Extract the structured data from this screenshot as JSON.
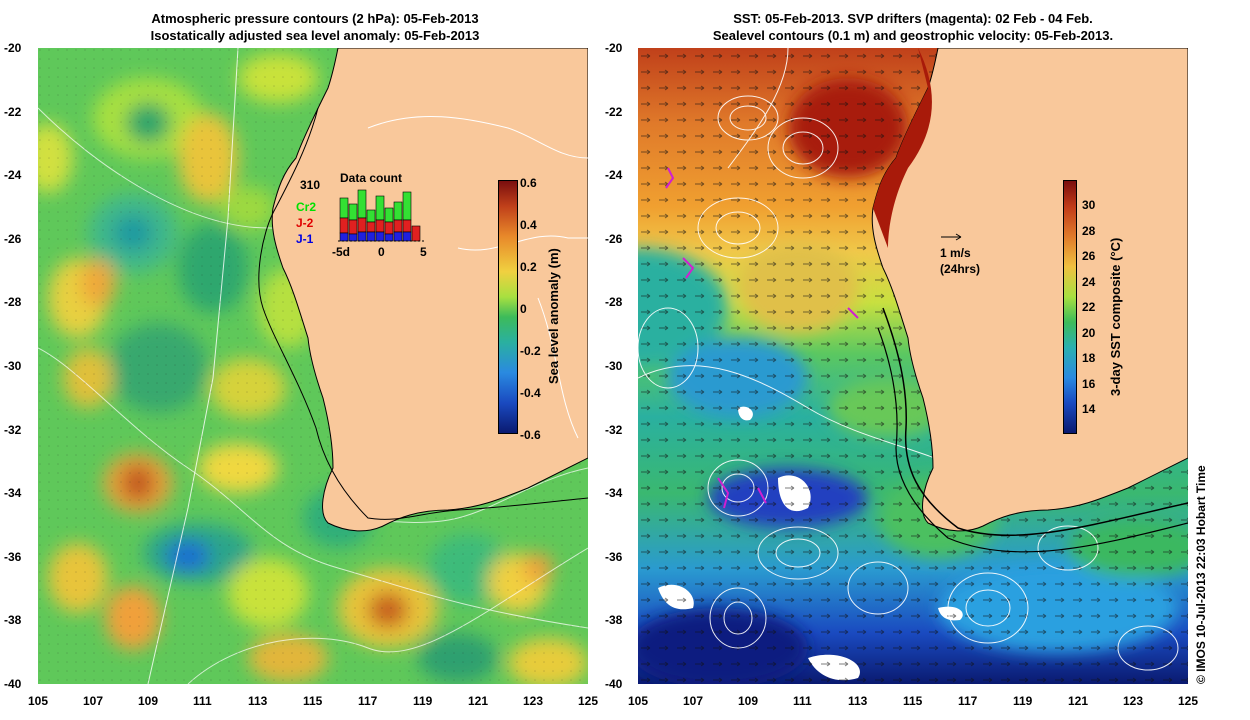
{
  "left_panel": {
    "title_line1": "Atmospheric pressure contours (2 hPa): 05-Feb-2013",
    "title_line2": "Isostatically adjusted sea level anomaly: 05-Feb-2013",
    "colorbar_label": "Sea level anomaly (m)",
    "colorbar_ticks": [
      "0.6",
      "0.4",
      "0.2",
      "0",
      "-0.2",
      "-0.4",
      "-0.6"
    ],
    "inset": {
      "title": "Data count",
      "max_label": "310",
      "legend": [
        "Cr2",
        "J-2",
        "J-1"
      ],
      "x_ticks": [
        "-5d",
        "0",
        "5"
      ]
    }
  },
  "right_panel": {
    "title_line1": "SST: 05-Feb-2013. SVP drifters (magenta): 02 Feb - 04 Feb.",
    "title_line2": "Sealevel contours (0.1 m) and geostrophic velocity: 05-Feb-2013.",
    "colorbar_label": "3-day SST composite (°C)",
    "colorbar_ticks": [
      "30",
      "28",
      "26",
      "24",
      "22",
      "20",
      "18",
      "16",
      "14"
    ],
    "velocity_scale_label": "1 m/s",
    "velocity_scale_sub": "(24hrs)"
  },
  "axes": {
    "lat_ticks": [
      "-20",
      "-22",
      "-24",
      "-26",
      "-28",
      "-30",
      "-32",
      "-34",
      "-36",
      "-38",
      "-40"
    ],
    "lon_ticks": [
      "105",
      "107",
      "109",
      "111",
      "113",
      "115",
      "117",
      "119",
      "121",
      "123",
      "125"
    ]
  },
  "credit": "© IMOS 10-Jul-2013 22:03 Hobart Time",
  "colors": {
    "land": "#f9c89b",
    "slab_high": "#b03a10",
    "slab_low": "#1a2a8c",
    "sst_warm": "#a31a0a",
    "sst_cool": "#1c3aa0"
  }
}
